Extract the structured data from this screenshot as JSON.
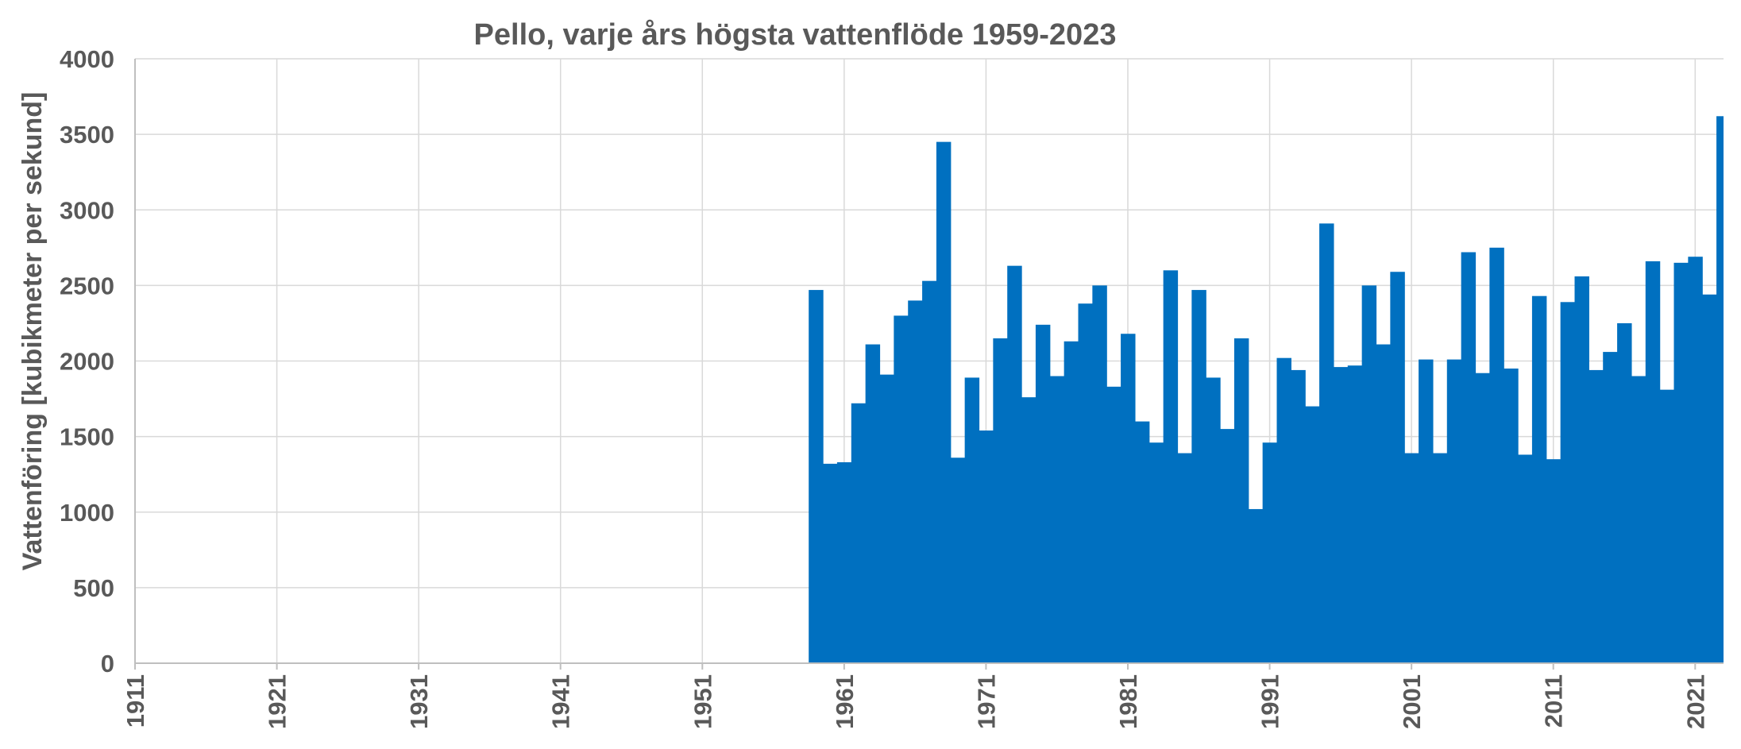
{
  "chart_data": {
    "type": "bar",
    "title": "Pello, varje års högsta vattenflöde 1959-2023",
    "xlabel": "",
    "ylabel": "Vattenföring [kubikmeter per sekund]",
    "xlim": [
      1911,
      2023
    ],
    "ylim": [
      0,
      4000
    ],
    "x_ticks": [
      1911,
      1921,
      1931,
      1941,
      1951,
      1961,
      1971,
      1981,
      1991,
      2001,
      2011,
      2021
    ],
    "x_tick_labels": [
      "1911",
      "1921",
      "1931",
      "1941",
      "1951",
      "1961",
      "1971",
      "1981",
      "1991",
      "2001",
      "2011",
      "2021"
    ],
    "y_ticks": [
      0,
      500,
      1000,
      1500,
      2000,
      2500,
      3000,
      3500,
      4000
    ],
    "y_tick_labels": [
      "0",
      "500",
      "1000",
      "1500",
      "2000",
      "2500",
      "3000",
      "3500",
      "4000"
    ],
    "grid": true,
    "bar_color": "#0070c0",
    "x": [
      1959,
      1960,
      1961,
      1962,
      1963,
      1964,
      1965,
      1966,
      1967,
      1968,
      1969,
      1970,
      1971,
      1972,
      1973,
      1974,
      1975,
      1976,
      1977,
      1978,
      1979,
      1980,
      1981,
      1982,
      1983,
      1984,
      1985,
      1986,
      1987,
      1988,
      1989,
      1990,
      1991,
      1992,
      1993,
      1994,
      1995,
      1996,
      1997,
      1998,
      1999,
      2000,
      2001,
      2002,
      2003,
      2004,
      2005,
      2006,
      2007,
      2008,
      2009,
      2010,
      2011,
      2012,
      2013,
      2014,
      2015,
      2016,
      2017,
      2018,
      2019,
      2020,
      2021,
      2022,
      2023
    ],
    "values": [
      2470,
      1320,
      1330,
      1720,
      2110,
      1910,
      2300,
      2400,
      2530,
      3450,
      1360,
      1890,
      1540,
      2150,
      2630,
      1760,
      2240,
      1900,
      2130,
      2380,
      2500,
      1830,
      2180,
      1600,
      1460,
      2600,
      1390,
      2470,
      1890,
      1550,
      2150,
      1020,
      1460,
      2020,
      1940,
      1700,
      2910,
      1960,
      1970,
      2500,
      2110,
      2590,
      1390,
      2010,
      1390,
      2010,
      2720,
      1920,
      2750,
      1950,
      1380,
      2430,
      1350,
      2390,
      2560,
      1940,
      2060,
      2250,
      1900,
      2660,
      1810,
      2650,
      2690,
      2440,
      3620
    ]
  }
}
